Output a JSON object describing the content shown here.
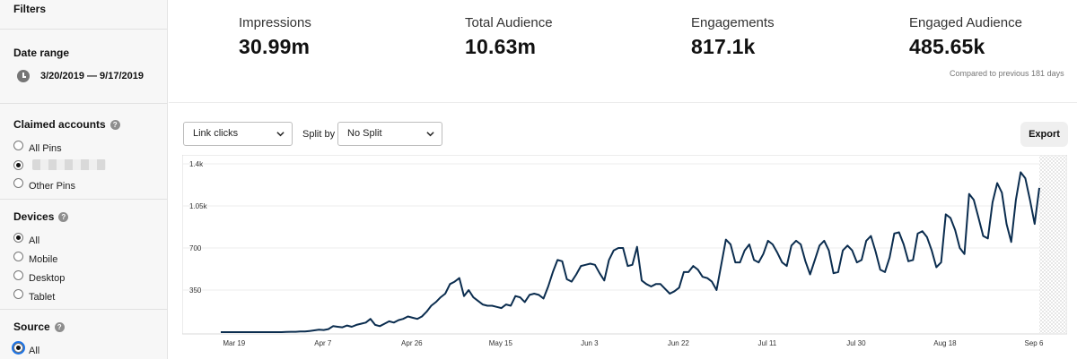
{
  "sidebar": {
    "filters_title": "Filters",
    "date_range": {
      "title": "Date range",
      "value": "3/20/2019 — 9/17/2019"
    },
    "claimed_accounts": {
      "title": "Claimed accounts",
      "options": [
        {
          "label": "All Pins",
          "selected": false
        },
        {
          "label": "",
          "selected": true,
          "redacted": true
        },
        {
          "label": "Other Pins",
          "selected": false
        }
      ]
    },
    "devices": {
      "title": "Devices",
      "options": [
        {
          "label": "All",
          "selected": true
        },
        {
          "label": "Mobile",
          "selected": false
        },
        {
          "label": "Desktop",
          "selected": false
        },
        {
          "label": "Tablet",
          "selected": false
        }
      ]
    },
    "source": {
      "title": "Source",
      "options": [
        {
          "label": "All",
          "selected": true
        }
      ]
    },
    "help_glyph": "?"
  },
  "metrics": [
    {
      "label": "Impressions",
      "value": "30.99m"
    },
    {
      "label": "Total Audience",
      "value": "10.63m"
    },
    {
      "label": "Engagements",
      "value": "817.1k"
    },
    {
      "label": "Engaged Audience",
      "value": "485.65k"
    }
  ],
  "compare_note": "Compared to previous 181 days",
  "controls": {
    "metric_select": "Link clicks",
    "split_label": "Split by",
    "split_select": "No Split",
    "export_label": "Export"
  },
  "chart_data": {
    "type": "line",
    "title": "",
    "xlabel": "",
    "ylabel": "",
    "ylim": [
      0,
      1400
    ],
    "yticks": [
      "1.4k",
      "1.05k",
      "700",
      "350"
    ],
    "ytick_values": [
      1400,
      1050,
      700,
      350
    ],
    "xticks": [
      "Mar 19",
      "Apr 7",
      "Apr 26",
      "May 15",
      "Jun 3",
      "Jun 22",
      "Jul 11",
      "Jul 30",
      "Aug 18",
      "Sep 6"
    ],
    "start_date": "2019-03-20",
    "series": [
      {
        "name": "Link clicks",
        "color": "#0b2d4f",
        "values": [
          0,
          0,
          0,
          0,
          0,
          0,
          0,
          0,
          0,
          0,
          0,
          0,
          0,
          0,
          2,
          3,
          3,
          5,
          5,
          10,
          15,
          20,
          18,
          25,
          50,
          45,
          40,
          55,
          45,
          60,
          70,
          80,
          110,
          60,
          50,
          70,
          90,
          80,
          100,
          110,
          130,
          120,
          110,
          130,
          170,
          220,
          250,
          290,
          320,
          400,
          420,
          450,
          300,
          350,
          290,
          260,
          230,
          220,
          220,
          210,
          200,
          230,
          220,
          300,
          290,
          250,
          310,
          320,
          310,
          280,
          380,
          500,
          600,
          590,
          440,
          420,
          480,
          550,
          560,
          570,
          560,
          490,
          430,
          600,
          680,
          700,
          700,
          550,
          560,
          710,
          430,
          400,
          380,
          400,
          400,
          360,
          320,
          340,
          370,
          500,
          500,
          550,
          520,
          460,
          450,
          420,
          350,
          560,
          770,
          730,
          580,
          580,
          680,
          730,
          600,
          580,
          650,
          760,
          730,
          660,
          580,
          550,
          720,
          760,
          730,
          590,
          480,
          600,
          720,
          760,
          680,
          490,
          500,
          680,
          720,
          680,
          580,
          600,
          760,
          800,
          670,
          520,
          500,
          620,
          820,
          830,
          730,
          590,
          600,
          820,
          840,
          790,
          680,
          540,
          580,
          980,
          950,
          850,
          700,
          650,
          1150,
          1100,
          950,
          800,
          780,
          1080,
          1240,
          1160,
          900,
          750,
          1100,
          1330,
          1280,
          1100,
          900,
          1200
        ]
      }
    ]
  }
}
